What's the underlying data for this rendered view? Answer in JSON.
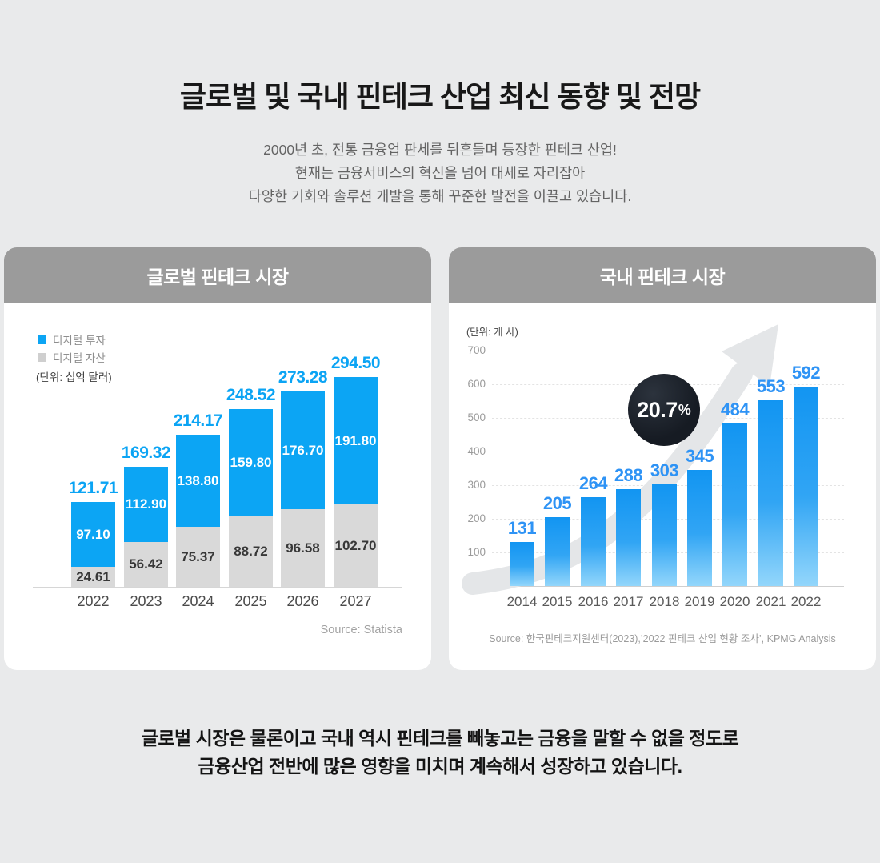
{
  "page": {
    "title": "글로벌 및 국내 핀테크 산업 최신 동향 및 전망",
    "subtitle_lines": [
      "2000년 초, 전통 금융업 판세를 뒤흔들며 등장한 핀테크 산업!",
      "현재는 금융서비스의 혁신을 넘어 대세로 자리잡아",
      "다양한 기회와 솔루션 개발을 통해 꾸준한 발전을 이끌고 있습니다."
    ],
    "footer_lines": [
      "글로벌 시장은 물론이고 국내 역시 핀테크를 빼놓고는 금융을 말할 수 없을 정도로",
      "금융산업 전반에 많은 영향을 미치며 계속해서 성장하고 있습니다."
    ]
  },
  "chart_data": [
    {
      "type": "bar",
      "stacked": true,
      "title": "글로벌 핀테크 시장",
      "unit_label": "(단위: 십억 달러)",
      "categories": [
        "2022",
        "2023",
        "2024",
        "2025",
        "2026",
        "2027"
      ],
      "series": [
        {
          "name": "디지털 투자",
          "color": "#0ca5f4",
          "value_labels": [
            "97.10",
            "112.90",
            "138.80",
            "159.80",
            "176.70",
            "191.80"
          ]
        },
        {
          "name": "디지털 자산",
          "color": "#d9d9d9",
          "value_labels": [
            "24.61",
            "56.42",
            "75.37",
            "88.72",
            "96.58",
            "102.70"
          ]
        }
      ],
      "total_labels": [
        "121.71",
        "169.32",
        "214.17",
        "248.52",
        "273.28",
        "294.50"
      ],
      "legend_position": "top-left",
      "grid": false,
      "source": "Source: Statista"
    },
    {
      "type": "bar",
      "stacked": false,
      "title": "국내 핀테크 시장",
      "unit_label": "(단위: 개 사)",
      "categories": [
        "2014",
        "2015",
        "2016",
        "2017",
        "2018",
        "2019",
        "2020",
        "2021",
        "2022"
      ],
      "values": [
        131,
        205,
        264,
        288,
        303,
        345,
        484,
        553,
        592
      ],
      "ylim": [
        0,
        700
      ],
      "yticks": [
        0,
        100,
        200,
        300,
        400,
        500,
        600,
        700
      ],
      "grid": "dashed-horizontal",
      "growth_badge": {
        "rate": "20.7",
        "suffix": "%"
      },
      "arrow_icon": "trend-up-arrow",
      "source": "Source: 한국핀테크지원센터(2023),’2022 핀테크 산업 현황 조사’, KPMG Analysis"
    }
  ],
  "colors": {
    "page_bg": "#e9eaeb",
    "card_bg": "#ffffff",
    "card_header_bg": "#9b9b9b",
    "accent_blue": "#0ca5f4",
    "label_blue": "#2e93f5",
    "bar_gray": "#d9d9d9",
    "badge_bg": "#171c24",
    "arrow_gray": "#e4e6e8"
  }
}
